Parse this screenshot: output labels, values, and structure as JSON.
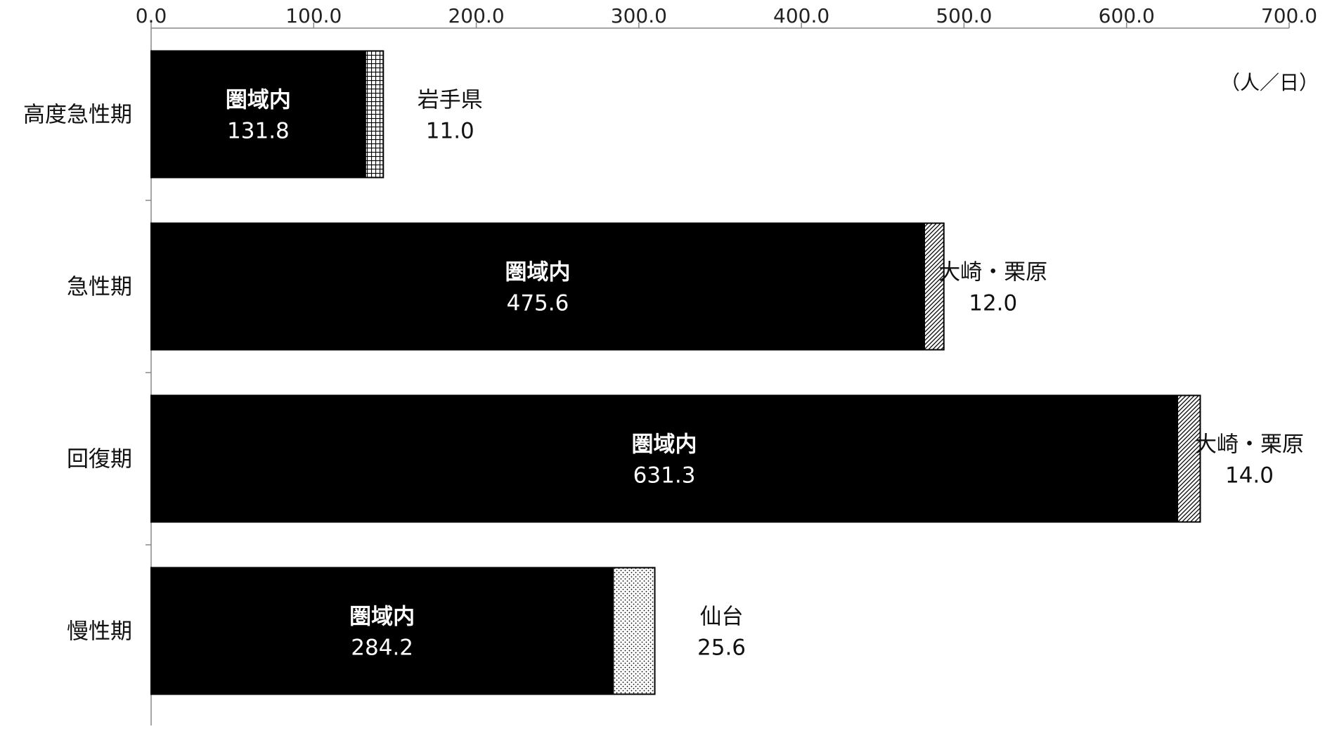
{
  "chart_data": {
    "type": "bar",
    "orientation": "horizontal",
    "stacked": true,
    "unit_label": "（人／日）",
    "categories": [
      "高度急性期",
      "急性期",
      "回復期",
      "慢性期"
    ],
    "xlim": [
      0,
      700
    ],
    "x_ticks": [
      "0.0",
      "100.0",
      "200.0",
      "300.0",
      "400.0",
      "500.0",
      "600.0",
      "700.0"
    ],
    "grid": false,
    "legend": "none",
    "bars": [
      {
        "category": "高度急性期",
        "segments": [
          {
            "name": "圏域内",
            "value": 131.8,
            "value_label": "131.8",
            "pattern": "solid",
            "color": "#000000"
          },
          {
            "name": "岩手県",
            "value": 11.0,
            "value_label": "11.0",
            "pattern": "grid",
            "color": "#000000"
          }
        ]
      },
      {
        "category": "急性期",
        "segments": [
          {
            "name": "圏域内",
            "value": 475.6,
            "value_label": "475.6",
            "pattern": "solid",
            "color": "#000000"
          },
          {
            "name": "大崎・栗原",
            "value": 12.0,
            "value_label": "12.0",
            "pattern": "diagonal",
            "color": "#000000"
          }
        ]
      },
      {
        "category": "回復期",
        "segments": [
          {
            "name": "圏域内",
            "value": 631.3,
            "value_label": "631.3",
            "pattern": "solid",
            "color": "#000000"
          },
          {
            "name": "大崎・栗原",
            "value": 14.0,
            "value_label": "14.0",
            "pattern": "diagonal",
            "color": "#000000"
          }
        ]
      },
      {
        "category": "慢性期",
        "segments": [
          {
            "name": "圏域内",
            "value": 284.2,
            "value_label": "284.2",
            "pattern": "solid",
            "color": "#000000"
          },
          {
            "name": "仙台",
            "value": 25.6,
            "value_label": "25.6",
            "pattern": "dots",
            "color": "#000000"
          }
        ]
      }
    ]
  }
}
